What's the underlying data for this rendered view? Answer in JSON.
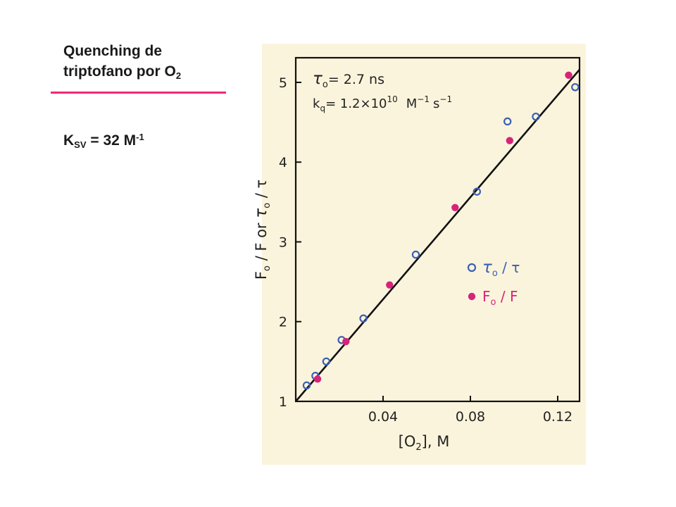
{
  "slide": {
    "title_line1": "Quenching de",
    "title_line2_main": "triptofano por O",
    "title_line2_sub": "2",
    "ksv_main": "K",
    "ksv_sub": "SV",
    "ksv_value": " = 32 M",
    "ksv_sup": "-1"
  },
  "colors": {
    "accent_rule": "#f0287a",
    "panel_bg": "#fbf4dc",
    "open_marker": "#3a5fb4",
    "filled_marker": "#d6247a",
    "fit_line": "#111111"
  },
  "chart_data": {
    "type": "scatter",
    "xlabel_main": "[O",
    "xlabel_sub": "2",
    "xlabel_tail": "], M",
    "ylabel_parts": [
      "F",
      "o",
      " / F  or  ",
      "τ",
      "o",
      " / τ"
    ],
    "xlim": [
      0,
      0.13
    ],
    "ylim": [
      1,
      5.15
    ],
    "x_ticks": [
      0.04,
      0.08,
      0.12
    ],
    "x_tick_labels": [
      "0.04",
      "0.08",
      "0.12"
    ],
    "y_ticks": [
      1,
      2,
      3,
      4,
      5
    ],
    "y_tick_labels": [
      "1",
      "2",
      "3",
      "4",
      "5"
    ],
    "annotations": {
      "tau0_symbol": "τ",
      "tau0_sub": "o",
      "tau0_text": "= 2.7 ns",
      "kq_symbol": "k",
      "kq_sub": "q",
      "kq_text": "= 1.2×10",
      "kq_exp": "10",
      "kq_units": "M",
      "kq_units_exp1": "−1",
      "kq_units_s": "s",
      "kq_units_exp2": "−1"
    },
    "legend_position": "right",
    "series": [
      {
        "name_parts": [
          "τ",
          "o",
          " / τ"
        ],
        "marker": "open",
        "x": [
          0.005,
          0.009,
          0.014,
          0.021,
          0.031,
          0.055,
          0.083,
          0.097,
          0.11,
          0.128
        ],
        "y": [
          1.2,
          1.32,
          1.5,
          1.77,
          2.04,
          2.84,
          3.63,
          4.51,
          4.57,
          4.94
        ]
      },
      {
        "name_parts": [
          "F",
          "o",
          " / F"
        ],
        "marker": "filled",
        "x": [
          0.01,
          0.023,
          0.043,
          0.073,
          0.098,
          0.125
        ],
        "y": [
          1.28,
          1.75,
          2.46,
          3.43,
          4.27,
          5.09
        ]
      }
    ],
    "fit_line": {
      "x": [
        0,
        0.13
      ],
      "y": [
        1.0,
        5.16
      ]
    }
  }
}
